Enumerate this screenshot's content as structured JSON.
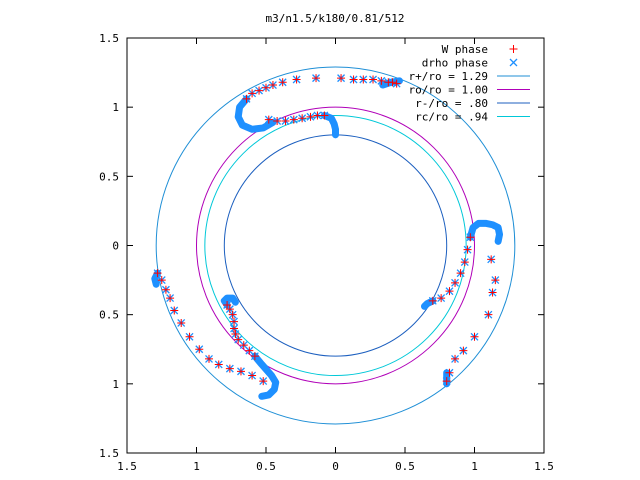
{
  "chart_data": {
    "type": "scatter",
    "title": "m3/n1.5/k180/0.81/512",
    "xlabel": "",
    "ylabel": "",
    "xlim": [
      -1.5,
      1.5
    ],
    "ylim": [
      -1.5,
      1.5
    ],
    "x_tick_values": [
      -1.5,
      -1,
      -0.5,
      0,
      0.5,
      1,
      1.5
    ],
    "y_tick_values": [
      -1.5,
      -1,
      -0.5,
      0,
      0.5,
      1,
      1.5
    ],
    "x_tick_labels": [
      "1.5",
      "1",
      "0.5",
      "0",
      "0.5",
      "1",
      "1.5"
    ],
    "y_tick_labels": [
      "1.5",
      "1",
      "0.5",
      "0",
      "0.5",
      "1",
      "1.5"
    ],
    "grid": false,
    "legend_position": "top-right",
    "legend": [
      {
        "label": "W phase",
        "kind": "marker",
        "marker": "plus",
        "color": "#ff0000"
      },
      {
        "label": "drho phase",
        "kind": "marker",
        "marker": "cross",
        "color": "#1e90ff"
      },
      {
        "label": "r+/ro = 1.29",
        "kind": "line",
        "color": "#1f8fd6"
      },
      {
        "label": "ro/ro = 1.00",
        "kind": "line",
        "color": "#b000b8"
      },
      {
        "label": "r-/ro = .80",
        "kind": "line",
        "color": "#1c5fbf"
      },
      {
        "label": "rc/ro = .94",
        "kind": "line",
        "color": "#00c8d8"
      }
    ],
    "circles": [
      {
        "name": "r+/ro",
        "r": 1.29,
        "color": "#1f8fd6"
      },
      {
        "name": "ro/ro",
        "r": 1.0,
        "color": "#b000b8"
      },
      {
        "name": "r-/ro",
        "r": 0.8,
        "color": "#1c5fbf"
      },
      {
        "name": "rc/ro",
        "r": 0.94,
        "color": "#00c8d8"
      }
    ],
    "series": [
      {
        "name": "W phase",
        "marker": "plus",
        "color": "#ff0000",
        "points": [
          [
            -0.14,
            1.21
          ],
          [
            -0.28,
            1.2
          ],
          [
            -0.38,
            1.18
          ],
          [
            -0.45,
            1.16
          ],
          [
            -0.5,
            1.14
          ],
          [
            -0.55,
            1.12
          ],
          [
            -0.6,
            1.1
          ],
          [
            -0.64,
            1.06
          ],
          [
            0.04,
            1.21
          ],
          [
            0.13,
            1.2
          ],
          [
            0.2,
            1.2
          ],
          [
            0.27,
            1.2
          ],
          [
            0.33,
            1.19
          ],
          [
            0.38,
            1.18
          ],
          [
            0.41,
            1.18
          ],
          [
            0.44,
            1.17
          ],
          [
            -0.48,
            0.91
          ],
          [
            -0.42,
            0.9
          ],
          [
            -0.36,
            0.9
          ],
          [
            -0.3,
            0.91
          ],
          [
            -0.24,
            0.92
          ],
          [
            -0.18,
            0.93
          ],
          [
            -0.13,
            0.94
          ],
          [
            -0.08,
            0.94
          ],
          [
            0.7,
            -0.4
          ],
          [
            0.76,
            -0.38
          ],
          [
            0.82,
            -0.33
          ],
          [
            0.86,
            -0.27
          ],
          [
            0.9,
            -0.2
          ],
          [
            0.93,
            -0.12
          ],
          [
            0.95,
            -0.03
          ],
          [
            0.97,
            0.06
          ],
          [
            1.12,
            -0.1
          ],
          [
            1.15,
            -0.25
          ],
          [
            1.13,
            -0.34
          ],
          [
            1.1,
            -0.5
          ],
          [
            1.0,
            -0.66
          ],
          [
            0.92,
            -0.76
          ],
          [
            0.86,
            -0.82
          ],
          [
            0.82,
            -0.92
          ],
          [
            0.8,
            -0.98
          ],
          [
            -1.28,
            -0.2
          ],
          [
            -1.25,
            -0.25
          ],
          [
            -1.22,
            -0.32
          ],
          [
            -1.19,
            -0.38
          ],
          [
            -1.16,
            -0.47
          ],
          [
            -1.11,
            -0.56
          ],
          [
            -1.05,
            -0.66
          ],
          [
            -0.98,
            -0.75
          ],
          [
            -0.91,
            -0.82
          ],
          [
            -0.84,
            -0.86
          ],
          [
            -0.76,
            -0.89
          ],
          [
            -0.68,
            -0.91
          ],
          [
            -0.6,
            -0.94
          ],
          [
            -0.52,
            -0.98
          ],
          [
            -0.78,
            -0.43
          ],
          [
            -0.76,
            -0.46
          ],
          [
            -0.74,
            -0.5
          ],
          [
            -0.73,
            -0.55
          ],
          [
            -0.73,
            -0.6
          ],
          [
            -0.72,
            -0.64
          ],
          [
            -0.7,
            -0.68
          ],
          [
            -0.66,
            -0.72
          ],
          [
            -0.62,
            -0.76
          ],
          [
            -0.58,
            -0.8
          ]
        ]
      },
      {
        "name": "drho phase",
        "marker": "cross",
        "color": "#1e90ff",
        "points": [
          [
            -0.14,
            1.21
          ],
          [
            -0.28,
            1.2
          ],
          [
            -0.38,
            1.18
          ],
          [
            -0.45,
            1.16
          ],
          [
            -0.5,
            1.14
          ],
          [
            -0.55,
            1.12
          ],
          [
            -0.6,
            1.1
          ],
          [
            -0.64,
            1.06
          ],
          [
            0.04,
            1.21
          ],
          [
            0.13,
            1.2
          ],
          [
            0.2,
            1.2
          ],
          [
            0.27,
            1.2
          ],
          [
            0.33,
            1.19
          ],
          [
            0.38,
            1.18
          ],
          [
            0.41,
            1.18
          ],
          [
            0.44,
            1.17
          ],
          [
            -0.48,
            0.91
          ],
          [
            -0.42,
            0.9
          ],
          [
            -0.36,
            0.9
          ],
          [
            -0.3,
            0.91
          ],
          [
            -0.24,
            0.92
          ],
          [
            -0.18,
            0.93
          ],
          [
            -0.13,
            0.94
          ],
          [
            -0.08,
            0.94
          ],
          [
            0.7,
            -0.4
          ],
          [
            0.76,
            -0.38
          ],
          [
            0.82,
            -0.33
          ],
          [
            0.86,
            -0.27
          ],
          [
            0.9,
            -0.2
          ],
          [
            0.93,
            -0.12
          ],
          [
            0.95,
            -0.03
          ],
          [
            0.97,
            0.06
          ],
          [
            1.12,
            -0.1
          ],
          [
            1.15,
            -0.25
          ],
          [
            1.13,
            -0.34
          ],
          [
            1.1,
            -0.5
          ],
          [
            1.0,
            -0.66
          ],
          [
            0.92,
            -0.76
          ],
          [
            0.86,
            -0.82
          ],
          [
            0.82,
            -0.92
          ],
          [
            0.8,
            -0.98
          ],
          [
            -1.28,
            -0.2
          ],
          [
            -1.25,
            -0.25
          ],
          [
            -1.22,
            -0.32
          ],
          [
            -1.19,
            -0.38
          ],
          [
            -1.16,
            -0.47
          ],
          [
            -1.11,
            -0.56
          ],
          [
            -1.05,
            -0.66
          ],
          [
            -0.98,
            -0.75
          ],
          [
            -0.91,
            -0.82
          ],
          [
            -0.84,
            -0.86
          ],
          [
            -0.76,
            -0.89
          ],
          [
            -0.68,
            -0.91
          ],
          [
            -0.6,
            -0.94
          ],
          [
            -0.52,
            -0.98
          ],
          [
            -0.78,
            -0.43
          ],
          [
            -0.76,
            -0.46
          ],
          [
            -0.74,
            -0.5
          ],
          [
            -0.73,
            -0.55
          ],
          [
            -0.73,
            -0.6
          ],
          [
            -0.72,
            -0.64
          ],
          [
            -0.7,
            -0.68
          ],
          [
            -0.66,
            -0.72
          ],
          [
            -0.62,
            -0.76
          ],
          [
            -0.58,
            -0.8
          ]
        ],
        "dense_arcs": [
          [
            [
              0.46,
              1.19
            ],
            [
              0.4,
              1.18
            ],
            [
              0.34,
              1.16
            ]
          ],
          [
            [
              -0.64,
              1.06
            ],
            [
              -0.69,
              1.0
            ],
            [
              -0.7,
              0.93
            ],
            [
              -0.67,
              0.87
            ],
            [
              -0.6,
              0.84
            ],
            [
              -0.52,
              0.85
            ],
            [
              -0.45,
              0.89
            ]
          ],
          [
            [
              -0.08,
              0.94
            ],
            [
              -0.03,
              0.92
            ],
            [
              -0.01,
              0.88
            ],
            [
              0.0,
              0.84
            ],
            [
              0.0,
              0.8
            ]
          ],
          [
            [
              0.97,
              0.06
            ],
            [
              0.99,
              0.13
            ],
            [
              1.03,
              0.16
            ],
            [
              1.08,
              0.16
            ],
            [
              1.13,
              0.15
            ],
            [
              1.17,
              0.13
            ],
            [
              1.18,
              0.08
            ],
            [
              1.17,
              0.03
            ]
          ],
          [
            [
              0.7,
              -0.4
            ],
            [
              0.66,
              -0.42
            ],
            [
              0.64,
              -0.44
            ]
          ],
          [
            [
              0.8,
              -0.92
            ],
            [
              0.8,
              -0.95
            ],
            [
              0.8,
              -1.0
            ]
          ],
          [
            [
              -1.28,
              -0.2
            ],
            [
              -1.3,
              -0.24
            ],
            [
              -1.29,
              -0.28
            ]
          ],
          [
            [
              -0.78,
              -0.43
            ],
            [
              -0.8,
              -0.4
            ],
            [
              -0.78,
              -0.38
            ],
            [
              -0.74,
              -0.38
            ],
            [
              -0.72,
              -0.41
            ]
          ],
          [
            [
              -0.58,
              -0.8
            ],
            [
              -0.53,
              -0.86
            ],
            [
              -0.46,
              -0.94
            ],
            [
              -0.43,
              -0.99
            ],
            [
              -0.44,
              -1.04
            ],
            [
              -0.48,
              -1.08
            ],
            [
              -0.53,
              -1.09
            ]
          ]
        ]
      }
    ]
  }
}
